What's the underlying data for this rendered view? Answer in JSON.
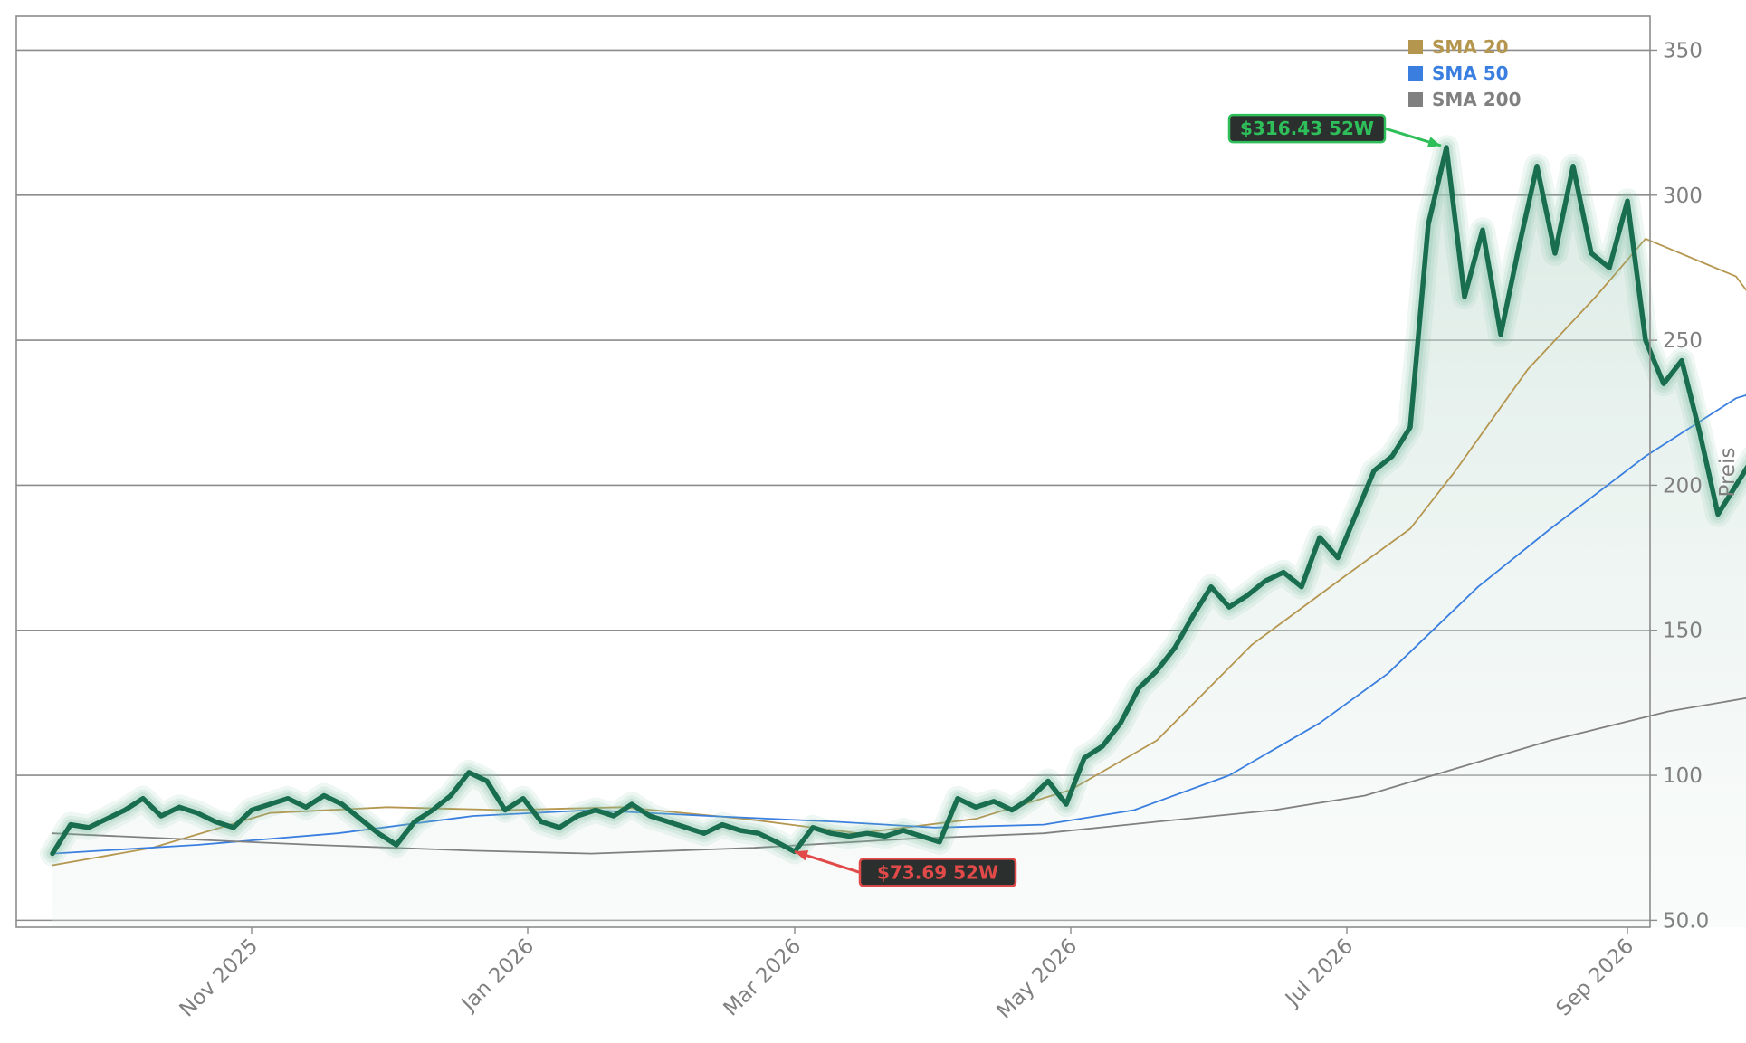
{
  "chart_data": {
    "type": "line",
    "ylabel": "Preis",
    "ylim": [
      47,
      362
    ],
    "y_ticks": [
      "50.0",
      "100",
      "150",
      "200",
      "250",
      "300",
      "350"
    ],
    "x_ticks": [
      "Nov 2025",
      "Jan 2026",
      "Mar 2026",
      "May 2026",
      "Jul 2026",
      "Sep 2026"
    ],
    "grid": "horizontal",
    "legend_position": "top-right",
    "colors": {
      "price": "#1a6e50",
      "price_glow": "#7fbfa4",
      "area_fill": "#cfe3dc",
      "sma20": "#b5964f",
      "sma50": "#3a7fe0",
      "sma200": "#808080",
      "high": "#2fbf5a",
      "low": "#e24a4a",
      "grid": "#8c8c8c",
      "frame": "#8c8c8c"
    },
    "series": [
      {
        "name": "Price",
        "points": [
          [
            "2025-09-18",
            73
          ],
          [
            "2025-09-22",
            83
          ],
          [
            "2025-09-26",
            82
          ],
          [
            "2025-09-30",
            85
          ],
          [
            "2025-10-04",
            88
          ],
          [
            "2025-10-08",
            92
          ],
          [
            "2025-10-12",
            86
          ],
          [
            "2025-10-16",
            89
          ],
          [
            "2025-10-20",
            87
          ],
          [
            "2025-10-24",
            84
          ],
          [
            "2025-10-28",
            82
          ],
          [
            "2025-11-01",
            88
          ],
          [
            "2025-11-05",
            90
          ],
          [
            "2025-11-09",
            92
          ],
          [
            "2025-11-13",
            89
          ],
          [
            "2025-11-17",
            93
          ],
          [
            "2025-11-21",
            90
          ],
          [
            "2025-11-25",
            85
          ],
          [
            "2025-11-29",
            80
          ],
          [
            "2025-12-03",
            76
          ],
          [
            "2025-12-07",
            84
          ],
          [
            "2025-12-11",
            88
          ],
          [
            "2025-12-15",
            93
          ],
          [
            "2025-12-19",
            101
          ],
          [
            "2025-12-23",
            98
          ],
          [
            "2025-12-27",
            88
          ],
          [
            "2025-12-31",
            92
          ],
          [
            "2026-01-04",
            84
          ],
          [
            "2026-01-08",
            82
          ],
          [
            "2026-01-12",
            86
          ],
          [
            "2026-01-16",
            88
          ],
          [
            "2026-01-20",
            86
          ],
          [
            "2026-01-24",
            90
          ],
          [
            "2026-01-28",
            86
          ],
          [
            "2026-02-01",
            84
          ],
          [
            "2026-02-05",
            82
          ],
          [
            "2026-02-09",
            80
          ],
          [
            "2026-02-13",
            83
          ],
          [
            "2026-02-17",
            81
          ],
          [
            "2026-02-21",
            80
          ],
          [
            "2026-02-25",
            77
          ],
          [
            "2026-03-01",
            73.69
          ],
          [
            "2026-03-05",
            82
          ],
          [
            "2026-03-09",
            80
          ],
          [
            "2026-03-13",
            79
          ],
          [
            "2026-03-17",
            80
          ],
          [
            "2026-03-21",
            79
          ],
          [
            "2026-03-25",
            81
          ],
          [
            "2026-03-29",
            79
          ],
          [
            "2026-04-02",
            77
          ],
          [
            "2026-04-06",
            92
          ],
          [
            "2026-04-10",
            89
          ],
          [
            "2026-04-14",
            91
          ],
          [
            "2026-04-18",
            88
          ],
          [
            "2026-04-22",
            92
          ],
          [
            "2026-04-26",
            98
          ],
          [
            "2026-04-30",
            90
          ],
          [
            "2026-05-04",
            106
          ],
          [
            "2026-05-08",
            110
          ],
          [
            "2026-05-12",
            118
          ],
          [
            "2026-05-16",
            130
          ],
          [
            "2026-05-20",
            136
          ],
          [
            "2026-05-24",
            144
          ],
          [
            "2026-05-28",
            155
          ],
          [
            "2026-06-01",
            165
          ],
          [
            "2026-06-05",
            158
          ],
          [
            "2026-06-09",
            162
          ],
          [
            "2026-06-13",
            167
          ],
          [
            "2026-06-17",
            170
          ],
          [
            "2026-06-21",
            165
          ],
          [
            "2026-06-25",
            182
          ],
          [
            "2026-06-29",
            175
          ],
          [
            "2026-07-03",
            190
          ],
          [
            "2026-07-07",
            205
          ],
          [
            "2026-07-11",
            210
          ],
          [
            "2026-07-15",
            220
          ],
          [
            "2026-07-19",
            290
          ],
          [
            "2026-07-23",
            316.43
          ],
          [
            "2026-07-27",
            265
          ],
          [
            "2026-07-31",
            288
          ],
          [
            "2026-08-04",
            252
          ],
          [
            "2026-08-08",
            282
          ],
          [
            "2026-08-12",
            310
          ],
          [
            "2026-08-16",
            280
          ],
          [
            "2026-08-20",
            310
          ],
          [
            "2026-08-24",
            280
          ],
          [
            "2026-08-28",
            275
          ],
          [
            "2026-09-01",
            298
          ],
          [
            "2026-09-05",
            250
          ],
          [
            "2026-09-09",
            235
          ],
          [
            "2026-09-13",
            243
          ],
          [
            "2026-09-17",
            218
          ],
          [
            "2026-09-21",
            190
          ],
          [
            "2026-09-25",
            200
          ],
          [
            "2026-09-29",
            210
          ],
          [
            "2026-10-03",
            190
          ],
          [
            "2026-10-07",
            163
          ],
          [
            "2026-10-11",
            190
          ],
          [
            "2026-10-15",
            218
          ],
          [
            "2026-10-19",
            212
          ],
          [
            "2026-10-23",
            218
          ],
          [
            "2026-10-27",
            210
          ],
          [
            "2026-10-31",
            222
          ],
          [
            "2026-11-04",
            235
          ],
          [
            "2026-11-08",
            248
          ],
          [
            "2026-11-12",
            232
          ],
          [
            "2026-11-16",
            242
          ],
          [
            "2026-11-20",
            218
          ],
          [
            "2026-11-24",
            212
          ],
          [
            "2026-11-28",
            220
          ],
          [
            "2026-12-02",
            235
          ],
          [
            "2026-12-06",
            230
          ],
          [
            "2026-12-10",
            222
          ],
          [
            "2026-12-14",
            242
          ],
          [
            "2026-12-18",
            264
          ]
        ]
      },
      {
        "name": "SMA 20",
        "points": [
          [
            "2025-09-18",
            69
          ],
          [
            "2025-10-10",
            75
          ],
          [
            "2025-11-05",
            87
          ],
          [
            "2025-12-01",
            89
          ],
          [
            "2025-12-27",
            88
          ],
          [
            "2026-01-22",
            89
          ],
          [
            "2026-02-18",
            85
          ],
          [
            "2026-03-15",
            80
          ],
          [
            "2026-04-10",
            85
          ],
          [
            "2026-05-01",
            95
          ],
          [
            "2026-05-20",
            112
          ],
          [
            "2026-06-10",
            145
          ],
          [
            "2026-06-30",
            168
          ],
          [
            "2026-07-15",
            185
          ],
          [
            "2026-07-25",
            205
          ],
          [
            "2026-08-10",
            240
          ],
          [
            "2026-08-25",
            265
          ],
          [
            "2026-09-05",
            285
          ],
          [
            "2026-09-25",
            272
          ],
          [
            "2026-10-15",
            230
          ],
          [
            "2026-10-25",
            210
          ],
          [
            "2026-11-05",
            202
          ],
          [
            "2026-11-20",
            215
          ],
          [
            "2026-12-05",
            225
          ],
          [
            "2026-12-20",
            228
          ]
        ]
      },
      {
        "name": "SMA 50",
        "points": [
          [
            "2025-09-18",
            73
          ],
          [
            "2025-10-20",
            76
          ],
          [
            "2025-11-20",
            80
          ],
          [
            "2025-12-20",
            86
          ],
          [
            "2026-01-15",
            88
          ],
          [
            "2026-02-10",
            86
          ],
          [
            "2026-03-10",
            84
          ],
          [
            "2026-04-01",
            82
          ],
          [
            "2026-04-25",
            83
          ],
          [
            "2026-05-15",
            88
          ],
          [
            "2026-06-05",
            100
          ],
          [
            "2026-06-25",
            118
          ],
          [
            "2026-07-10",
            135
          ],
          [
            "2026-07-20",
            150
          ],
          [
            "2026-07-30",
            165
          ],
          [
            "2026-08-15",
            185
          ],
          [
            "2026-09-05",
            210
          ],
          [
            "2026-09-25",
            230
          ],
          [
            "2026-10-10",
            237
          ],
          [
            "2026-10-20",
            239
          ],
          [
            "2026-11-05",
            241
          ],
          [
            "2026-11-20",
            233
          ],
          [
            "2026-12-05",
            222
          ],
          [
            "2026-12-20",
            216
          ]
        ]
      },
      {
        "name": "SMA 200",
        "points": [
          [
            "2025-09-18",
            80
          ],
          [
            "2025-11-15",
            76
          ],
          [
            "2025-12-20",
            74
          ],
          [
            "2026-01-15",
            73
          ],
          [
            "2026-02-20",
            75
          ],
          [
            "2026-03-25",
            78
          ],
          [
            "2026-04-25",
            80
          ],
          [
            "2026-05-20",
            84
          ],
          [
            "2026-06-15",
            88
          ],
          [
            "2026-07-05",
            93
          ],
          [
            "2026-07-20",
            100
          ],
          [
            "2026-08-15",
            112
          ],
          [
            "2026-09-10",
            122
          ],
          [
            "2026-10-10",
            130
          ],
          [
            "2026-11-10",
            137
          ],
          [
            "2026-12-01",
            148
          ],
          [
            "2026-12-20",
            158
          ]
        ]
      }
    ],
    "annotations": [
      {
        "label": "$316.43 52W",
        "date": "2026-07-23",
        "value": 316.43,
        "kind": "high"
      },
      {
        "label": "$73.69 52W",
        "date": "2026-03-01",
        "value": 73.69,
        "kind": "low"
      }
    ],
    "legend": [
      "SMA 20",
      "SMA 50",
      "SMA 200"
    ]
  }
}
